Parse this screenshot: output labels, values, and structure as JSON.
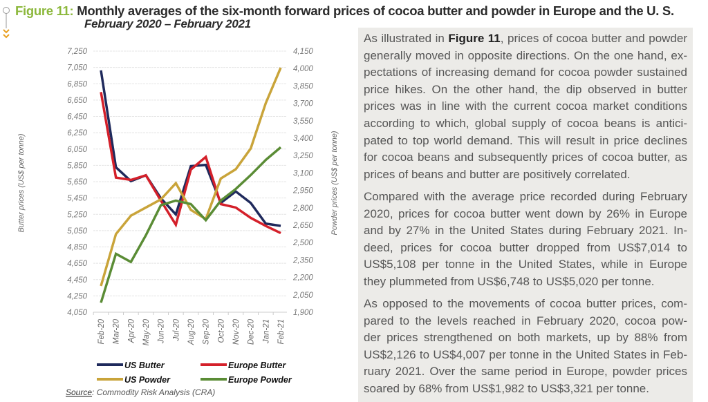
{
  "figure": {
    "label": "Figure 11:",
    "title": "Monthly averages of the six-month forward prices of cocoa butter and powder in Europe and the U. S.",
    "subtitle": "February 2020 – February 2021",
    "source_label": "Source",
    "source_text": ": Commodity Risk Analysis (CRA)"
  },
  "chart_data": {
    "type": "line",
    "categories": [
      "Feb-20",
      "Mar-20",
      "Apr-20",
      "May-20",
      "Jun-20",
      "Jul-20",
      "Aug-20",
      "Sep-20",
      "Oct-20",
      "Nov-20",
      "Dec-20",
      "Jan-21",
      "Feb-21"
    ],
    "ylabel": "Butter prices (US$ per tonne)",
    "y2label": "Powder prices (US$ per tonne)",
    "ylim": [
      4050,
      7250
    ],
    "y2lim": [
      1900,
      4150
    ],
    "yticks": [
      "4,050",
      "4,250",
      "4,450",
      "4,650",
      "4,850",
      "5,050",
      "5,250",
      "5,450",
      "5,650",
      "5,850",
      "6,050",
      "6,250",
      "6,450",
      "6,650",
      "6,850",
      "7,050",
      "7,250"
    ],
    "y2ticks": [
      "1,900",
      "2,050",
      "2,200",
      "2,350",
      "2,500",
      "2,650",
      "2,800",
      "2,950",
      "3,100",
      "3,250",
      "3,400",
      "3,550",
      "3,700",
      "3,850",
      "4,000",
      "4,150"
    ],
    "grid": true,
    "legend_position": "bottom",
    "series": [
      {
        "name": "US Butter",
        "axis": "left",
        "color": "#1f2a5c",
        "values": [
          7014,
          5826,
          5657,
          5728,
          5446,
          5248,
          5840,
          5855,
          5389,
          5530,
          5389,
          5136,
          5108
        ]
      },
      {
        "name": "Europe Butter",
        "axis": "left",
        "color": "#d4202a",
        "values": [
          6748,
          5700,
          5671,
          5728,
          5418,
          5122,
          5798,
          5953,
          5375,
          5333,
          5206,
          5108,
          5020
        ]
      },
      {
        "name": "US Powder",
        "axis": "right",
        "color": "#c9a43a",
        "values": [
          2126,
          2573,
          2732,
          2802,
          2872,
          3012,
          2782,
          2703,
          3052,
          3132,
          3311,
          3701,
          4007
        ]
      },
      {
        "name": "Europe Powder",
        "axis": "right",
        "color": "#5a8c35",
        "values": [
          1982,
          2403,
          2333,
          2563,
          2822,
          2862,
          2832,
          2693,
          2862,
          2962,
          3082,
          3212,
          3321
        ]
      }
    ]
  },
  "text": {
    "p1": {
      "first_pre": "As illustrated in ",
      "first_bold": "Figure 11",
      "first_post": ", prices of cocoa butter and powder",
      "lines": [
        "generally moved in opposite directions. On the one hand, ex-",
        "pectations of increasing demand for cocoa powder sustained",
        "price hikes. On the other hand, the dip observed in butter",
        "prices was in line with the current cocoa market conditions",
        "according to which, global supply of cocoa beans is antici-",
        "pated to top world demand. This will result in price declines",
        "for cocoa beans and subsequently prices of cocoa butter, as",
        "prices of beans and butter are positively correlated."
      ]
    },
    "p2": [
      "Compared with the average price recorded during February",
      "2020, prices for cocoa butter went down by 26% in Europe",
      "and by 27% in the United States during February 2021. In-",
      "deed, prices for cocoa butter dropped from US$7,014 to",
      "US$5,108 per tonne in the United States, while in Europe",
      "they plummeted from US$6,748 to US$5,020 per tonne."
    ],
    "p3": [
      "As opposed to the movements of cocoa butter prices, com-",
      "pared to the levels reached in February 2020, cocoa pow-",
      "der prices strengthened on both markets, up by 88% from",
      "US$2,126 to US$4,007 per tonne in the United States in Feb-",
      "ruary 2021. Over the same period in Europe, powder prices",
      "soared by 68% from US$1,982 to US$3,321 per tonne."
    ]
  }
}
